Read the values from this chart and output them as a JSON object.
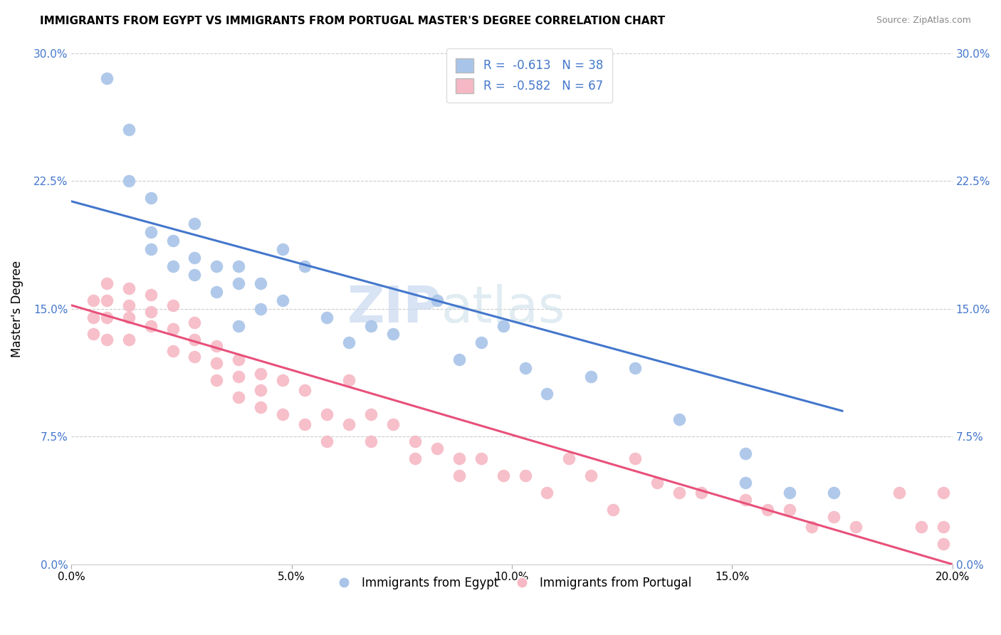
{
  "title": "IMMIGRANTS FROM EGYPT VS IMMIGRANTS FROM PORTUGAL MASTER'S DEGREE CORRELATION CHART",
  "source": "Source: ZipAtlas.com",
  "xlabel_bottom": "Immigrants from Egypt",
  "xlabel_bottom2": "Immigrants from Portugal",
  "ylabel": "Master's Degree",
  "xlim": [
    0.0,
    0.2
  ],
  "ylim": [
    0.0,
    0.3
  ],
  "xticks": [
    0.0,
    0.05,
    0.1,
    0.15,
    0.2
  ],
  "xtick_labels": [
    "0.0%",
    "5.0%",
    "10.0%",
    "15.0%",
    "20.0%"
  ],
  "yticks": [
    0.0,
    0.075,
    0.15,
    0.225,
    0.3
  ],
  "ytick_labels": [
    "0.0%",
    "7.5%",
    "15.0%",
    "22.5%",
    "30.0%"
  ],
  "blue_color": "#a8c4e8",
  "pink_color": "#f5b8c4",
  "blue_line_color": "#4477cc",
  "pink_line_color": "#e8507a",
  "blue_R": -0.613,
  "blue_N": 38,
  "pink_R": -0.582,
  "pink_N": 67,
  "watermark_zip": "ZIP",
  "watermark_atlas": "atlas",
  "blue_line_x0": 0.0,
  "blue_line_y0": 0.213,
  "blue_line_x1": 0.175,
  "blue_line_y1": 0.09,
  "pink_line_x0": 0.0,
  "pink_line_y0": 0.152,
  "pink_line_x1": 0.2,
  "pink_line_y1": 0.0,
  "blue_scatter_x": [
    0.008,
    0.013,
    0.013,
    0.018,
    0.018,
    0.018,
    0.023,
    0.023,
    0.028,
    0.028,
    0.028,
    0.033,
    0.033,
    0.038,
    0.038,
    0.038,
    0.043,
    0.043,
    0.048,
    0.048,
    0.053,
    0.058,
    0.063,
    0.068,
    0.073,
    0.083,
    0.088,
    0.093,
    0.098,
    0.103,
    0.108,
    0.118,
    0.128,
    0.138,
    0.153,
    0.153,
    0.163,
    0.173
  ],
  "blue_scatter_y": [
    0.285,
    0.255,
    0.225,
    0.215,
    0.195,
    0.185,
    0.19,
    0.175,
    0.2,
    0.18,
    0.17,
    0.175,
    0.16,
    0.175,
    0.165,
    0.14,
    0.165,
    0.15,
    0.185,
    0.155,
    0.175,
    0.145,
    0.13,
    0.14,
    0.135,
    0.155,
    0.12,
    0.13,
    0.14,
    0.115,
    0.1,
    0.11,
    0.115,
    0.085,
    0.065,
    0.048,
    0.042,
    0.042
  ],
  "pink_scatter_x": [
    0.005,
    0.005,
    0.005,
    0.008,
    0.008,
    0.008,
    0.008,
    0.013,
    0.013,
    0.013,
    0.013,
    0.018,
    0.018,
    0.018,
    0.023,
    0.023,
    0.023,
    0.028,
    0.028,
    0.028,
    0.033,
    0.033,
    0.033,
    0.038,
    0.038,
    0.038,
    0.043,
    0.043,
    0.043,
    0.048,
    0.048,
    0.053,
    0.053,
    0.058,
    0.058,
    0.063,
    0.063,
    0.068,
    0.068,
    0.073,
    0.078,
    0.078,
    0.083,
    0.088,
    0.088,
    0.093,
    0.098,
    0.103,
    0.108,
    0.113,
    0.118,
    0.123,
    0.128,
    0.133,
    0.138,
    0.143,
    0.153,
    0.158,
    0.163,
    0.168,
    0.173,
    0.178,
    0.188,
    0.193,
    0.198,
    0.198,
    0.198
  ],
  "pink_scatter_y": [
    0.155,
    0.145,
    0.135,
    0.165,
    0.155,
    0.145,
    0.132,
    0.162,
    0.152,
    0.145,
    0.132,
    0.158,
    0.148,
    0.14,
    0.152,
    0.138,
    0.125,
    0.142,
    0.132,
    0.122,
    0.128,
    0.118,
    0.108,
    0.12,
    0.11,
    0.098,
    0.112,
    0.102,
    0.092,
    0.108,
    0.088,
    0.102,
    0.082,
    0.088,
    0.072,
    0.108,
    0.082,
    0.088,
    0.072,
    0.082,
    0.072,
    0.062,
    0.068,
    0.062,
    0.052,
    0.062,
    0.052,
    0.052,
    0.042,
    0.062,
    0.052,
    0.032,
    0.062,
    0.048,
    0.042,
    0.042,
    0.038,
    0.032,
    0.032,
    0.022,
    0.028,
    0.022,
    0.042,
    0.022,
    0.042,
    0.022,
    0.012
  ]
}
